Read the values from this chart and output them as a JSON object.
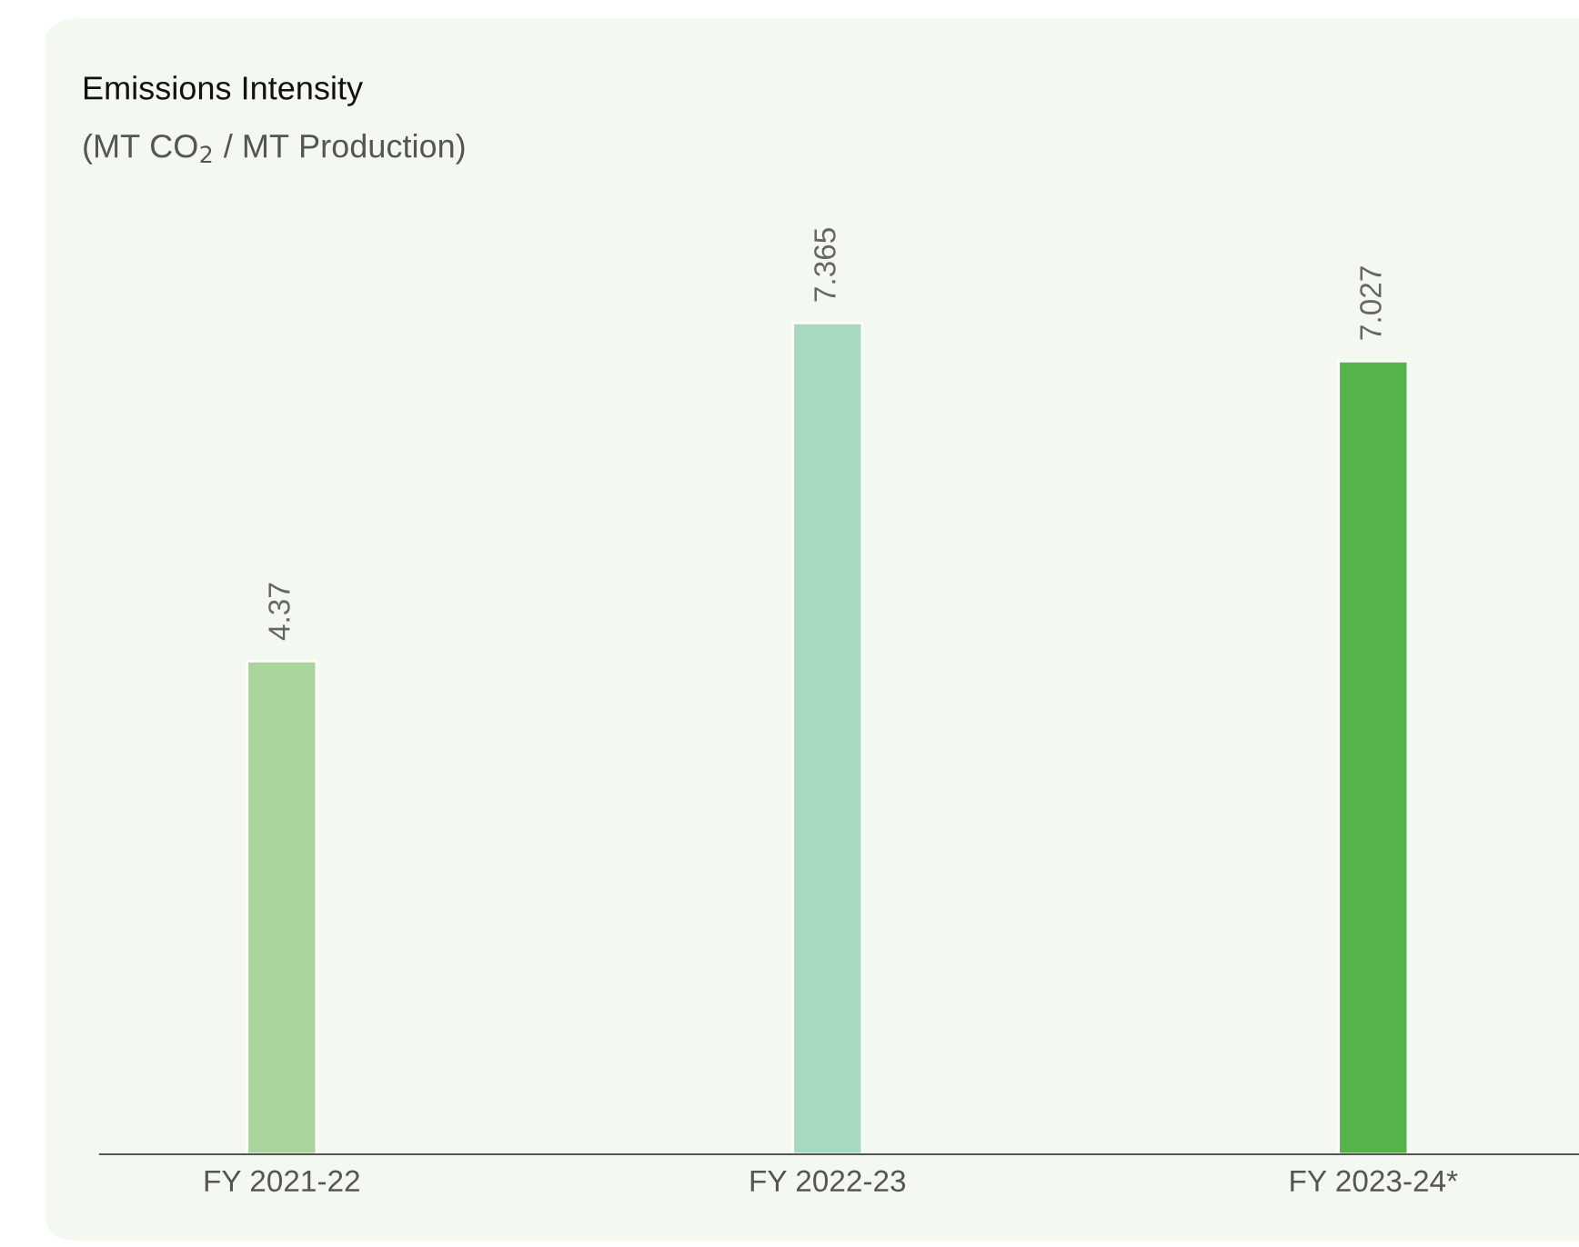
{
  "chart_data": {
    "type": "bar",
    "title": "Emissions Intensity",
    "subtitle": "(MT CO$_{2}$ / MT Production)",
    "categories": [
      "FY 2021-22",
      "FY 2022-23",
      "FY 2023-24*"
    ],
    "values": [
      4.37,
      7.365,
      7.027
    ],
    "colors": [
      "#a9d49b",
      "#a6d9be",
      "#55b349"
    ],
    "data_labels": true,
    "grid": false,
    "legend": false
  }
}
